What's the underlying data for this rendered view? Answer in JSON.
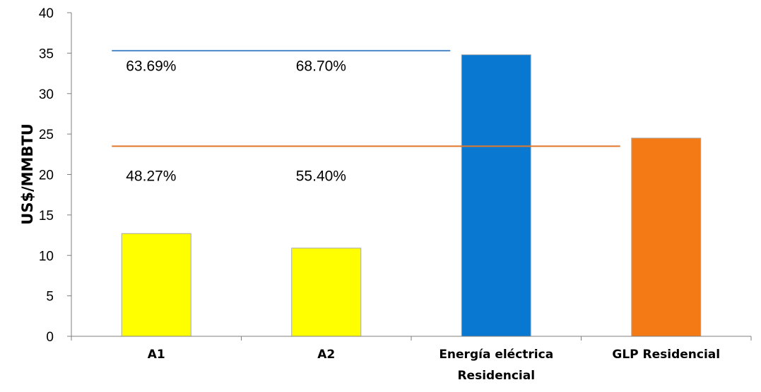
{
  "chart_data": {
    "type": "bar",
    "categories": [
      {
        "lines": [
          "A1"
        ]
      },
      {
        "lines": [
          "A2"
        ]
      },
      {
        "lines": [
          "Energía eléctrica",
          "Residencial"
        ]
      },
      {
        "lines": [
          "GLP Residencial"
        ]
      }
    ],
    "values": [
      12.7,
      10.9,
      34.8,
      24.5
    ],
    "bar_colors": [
      "#ffff00",
      "#ffff00",
      "#0878d0",
      "#f47a15"
    ],
    "bar_stroke": "#a8a8a8",
    "ylabel": "US$/MMBTU",
    "xlabel": "",
    "ylim": [
      0,
      40
    ],
    "yticks": [
      0,
      5,
      10,
      15,
      20,
      25,
      30,
      35,
      40
    ],
    "grid": false,
    "reference_lines": [
      {
        "value": 35.3,
        "color": "#4a86c8",
        "from_category": 0,
        "to_category": 2
      },
      {
        "value": 23.5,
        "color": "#e0782a",
        "from_category": 0,
        "to_category": 3
      }
    ],
    "annotations": [
      {
        "text": "63.69%",
        "category": 0,
        "y": 33.5
      },
      {
        "text": "68.70%",
        "category": 1,
        "y": 33.5
      },
      {
        "text": "48.27%",
        "category": 0,
        "y": 19.9
      },
      {
        "text": "55.40%",
        "category": 1,
        "y": 19.9
      }
    ]
  }
}
